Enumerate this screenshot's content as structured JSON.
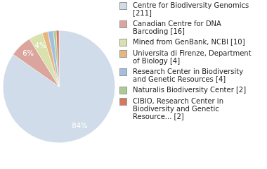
{
  "chart_data": {
    "type": "pie",
    "categories": [
      "Centre for Biodiversity Genomics [211]",
      "Canadian Centre for DNA Barcoding [16]",
      "Mined from GenBank, NCBI [10]",
      "Universita di Firenze, Department of Biology [4]",
      "Research Center in Biodiversity and Genetic Resources [4]",
      "Naturalis Biodiversity Center [2]",
      "CIBIO, Research Center in Biodiversity and Genetic Resource... [2]"
    ],
    "values": [
      84.4,
      6.4,
      4.0,
      1.6,
      1.6,
      0.8,
      0.8
    ],
    "value_labels": [
      "84%",
      "6%",
      "4%",
      null,
      null,
      null,
      null
    ],
    "colors": [
      "#d0dce9",
      "#dba59d",
      "#d9e2ac",
      "#e6b67e",
      "#a3bede",
      "#a9cd8f",
      "#d8785f"
    ],
    "data_labels": true,
    "legend": "right"
  }
}
